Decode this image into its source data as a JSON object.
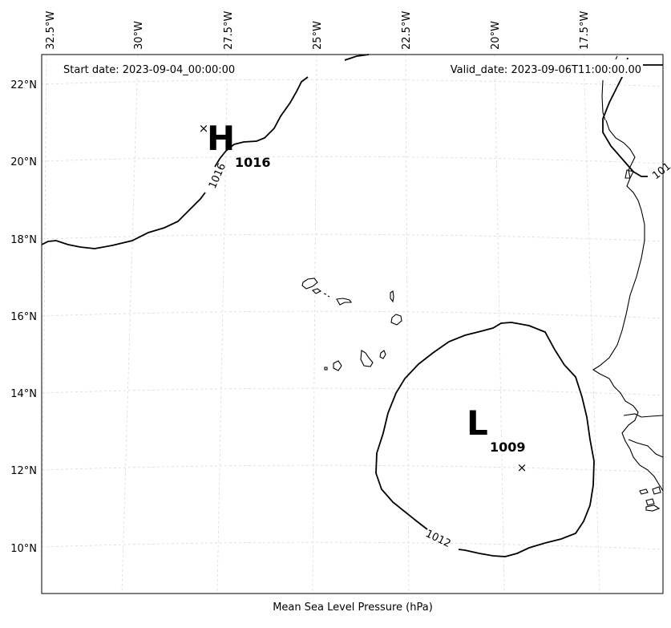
{
  "header": {
    "start_date": "Start date: 2023-09-04_00:00:00",
    "valid_date": "Valid_date: 2023-09-06T11:00:00.00"
  },
  "footer": {
    "caption": "Mean Sea Level Pressure (hPa)"
  },
  "axes": {
    "lon_labels": [
      "32.5°W",
      "30°W",
      "27.5°W",
      "25°W",
      "22.5°W",
      "20°W",
      "17.5°W"
    ],
    "lat_labels": [
      "22°N",
      "20°N",
      "18°N",
      "16°N",
      "14°N",
      "12°N",
      "10°N"
    ]
  },
  "systems": {
    "high": {
      "letter": "H",
      "value": "1016"
    },
    "low": {
      "letter": "L",
      "value": "1009"
    }
  },
  "contours": {
    "label_1016": "1016",
    "label_1012": "1012",
    "label_edge": "101"
  },
  "colors": {
    "frame": "#000000",
    "grid": "#d9d9d9",
    "isobar": "#000000",
    "coast": "#000000"
  }
}
